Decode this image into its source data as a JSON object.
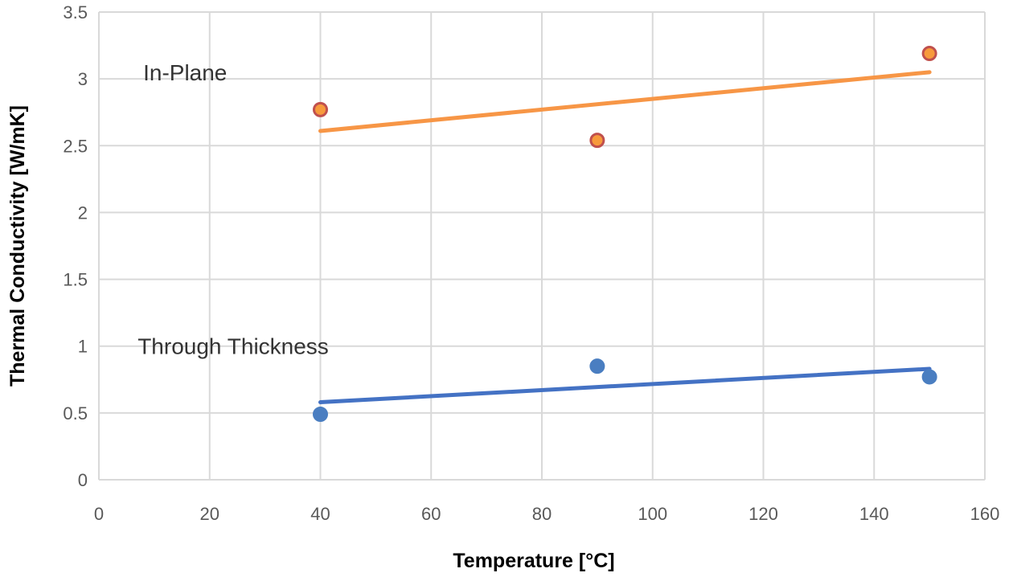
{
  "chart_data": {
    "type": "scatter",
    "title": "",
    "xlabel": "Temperature [°C]",
    "ylabel": "Thermal Conductivity [W/mK]",
    "xlim": [
      0,
      160
    ],
    "ylim": [
      0,
      3.5
    ],
    "xticks": [
      0,
      20,
      40,
      60,
      80,
      100,
      120,
      140,
      160
    ],
    "yticks": [
      0,
      0.5,
      1,
      1.5,
      2,
      2.5,
      3,
      3.5
    ],
    "xtick_labels": [
      "0",
      "20",
      "40",
      "60",
      "80",
      "100",
      "120",
      "140",
      "160"
    ],
    "ytick_labels": [
      "0",
      "0.5",
      "1",
      "1.5",
      "2",
      "2.5",
      "3",
      "3.5"
    ],
    "grid": true,
    "legend": "none",
    "series": [
      {
        "name": "In-Plane",
        "x": [
          40,
          90,
          150
        ],
        "y": [
          2.77,
          2.54,
          3.19
        ],
        "trendline": {
          "x": [
            40,
            150
          ],
          "y": [
            2.61,
            3.05
          ]
        },
        "color": "#F79A3C",
        "edge_color": "#C0504D",
        "line_color": "#F79646"
      },
      {
        "name": "Through Thickness",
        "x": [
          40,
          90,
          150
        ],
        "y": [
          0.49,
          0.85,
          0.77
        ],
        "trendline": {
          "x": [
            40,
            150
          ],
          "y": [
            0.58,
            0.83
          ]
        },
        "color": "#4A7EC1",
        "edge_color": "#4A7EC1",
        "line_color": "#4472C4"
      }
    ],
    "annotations": [
      {
        "text": "In-Plane",
        "x": 8,
        "y": 3.05
      },
      {
        "text": "Through Thickness",
        "x": 7,
        "y": 1.0
      }
    ]
  }
}
